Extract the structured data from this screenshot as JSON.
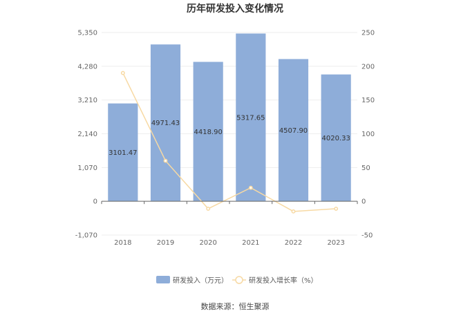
{
  "chart_data": {
    "type": "bar",
    "title": "历年研发投入变化情况",
    "categories": [
      "2018",
      "2019",
      "2020",
      "2021",
      "2022",
      "2023"
    ],
    "series": [
      {
        "name": "研发投入（万元）",
        "type": "bar",
        "axis": "left",
        "color": "#8eadd9",
        "values": [
          3101.47,
          4971.43,
          4418.9,
          5317.65,
          4507.9,
          4020.33
        ],
        "labels": [
          "3101.47",
          "4971.43",
          "4418.90",
          "5317.65",
          "4507.90",
          "4020.33"
        ]
      },
      {
        "name": "研发投入增长率（%）",
        "type": "line",
        "axis": "right",
        "color": "#f7d9a3",
        "values": [
          190,
          60,
          -11,
          20,
          -15,
          -11
        ]
      }
    ],
    "left_axis": {
      "ylim": [
        -1070,
        5350
      ],
      "ticks": [
        -1070,
        0,
        1070,
        2140,
        3210,
        4280,
        5350
      ],
      "tick_labels": [
        "-1,070",
        "0",
        "1,070",
        "2,140",
        "3,210",
        "4,280",
        "5,350"
      ]
    },
    "right_axis": {
      "ylim": [
        -50,
        250
      ],
      "ticks": [
        -50,
        0,
        50,
        100,
        150,
        200,
        250
      ],
      "tick_labels": [
        "-50",
        "0",
        "50",
        "100",
        "150",
        "200",
        "250"
      ]
    },
    "grid": true,
    "legend_position": "bottom"
  },
  "footer": {
    "source": "数据来源：恒生聚源"
  }
}
